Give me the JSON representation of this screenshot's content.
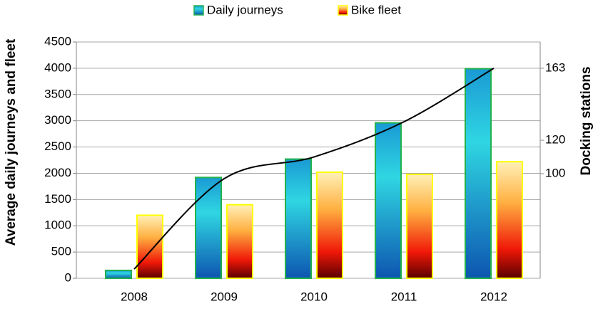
{
  "chart_data": {
    "type": "bar",
    "ylabel": "Average daily journeys and fleet",
    "y2label": "Docking stations",
    "categories": [
      "2008",
      "2009",
      "2010",
      "2011",
      "2012"
    ],
    "series": [
      {
        "name": "Daily journeys",
        "color": "#22b14c",
        "values": [
          150,
          1920,
          2270,
          2960,
          3990
        ]
      },
      {
        "name": "Bike fleet",
        "color": "#ffff00",
        "values": [
          1200,
          1400,
          2020,
          1980,
          2220
        ]
      }
    ],
    "line": {
      "type": "line",
      "axis": "y2",
      "color": "#000000",
      "values": [
        43,
        97,
        110,
        131,
        163
      ]
    },
    "ylim": [
      0,
      4500
    ],
    "yticks": [
      0,
      500,
      1000,
      1500,
      2000,
      2500,
      3000,
      3500,
      4000,
      4500
    ],
    "y2lim": [
      37.5,
      178.7
    ],
    "y2ticks": [
      100,
      120,
      163
    ],
    "grid": true
  }
}
